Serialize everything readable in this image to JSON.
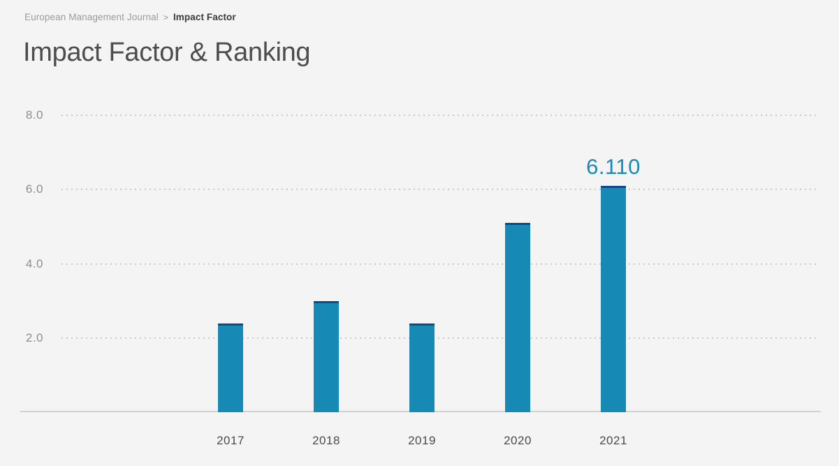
{
  "breadcrumb": {
    "journal": "European Management Journal",
    "separator": ">",
    "current": "Impact Factor"
  },
  "page": {
    "title": "Impact Factor & Ranking"
  },
  "chart_data": {
    "type": "bar",
    "title": "Impact Factor & Ranking",
    "xlabel": "",
    "ylabel": "",
    "categories": [
      "2017",
      "2018",
      "2019",
      "2020",
      "2021"
    ],
    "values": [
      2.4,
      3.0,
      2.4,
      5.1,
      6.11
    ],
    "bar_labels": [
      "",
      "",
      "",
      "",
      "6.110"
    ],
    "yticks": [
      2.0,
      4.0,
      6.0,
      8.0
    ],
    "ytick_labels": [
      "2.0",
      "4.0",
      "6.0",
      "8.0"
    ],
    "ylim": [
      0,
      8.5
    ],
    "grid": "horizontal-dotted",
    "legend": "none",
    "colors": {
      "background": "#f4f4f4",
      "bar_fill": "#1789b5",
      "bar_cap": "#0d4c89",
      "value_label": "#1d87b8",
      "grid_dots": "#c8c8c8",
      "axis_line": "#d1d1d1",
      "ytick_text": "#8d8d8d",
      "xtick_text": "#4a4a4a",
      "title_text": "#4d4d4d"
    }
  }
}
